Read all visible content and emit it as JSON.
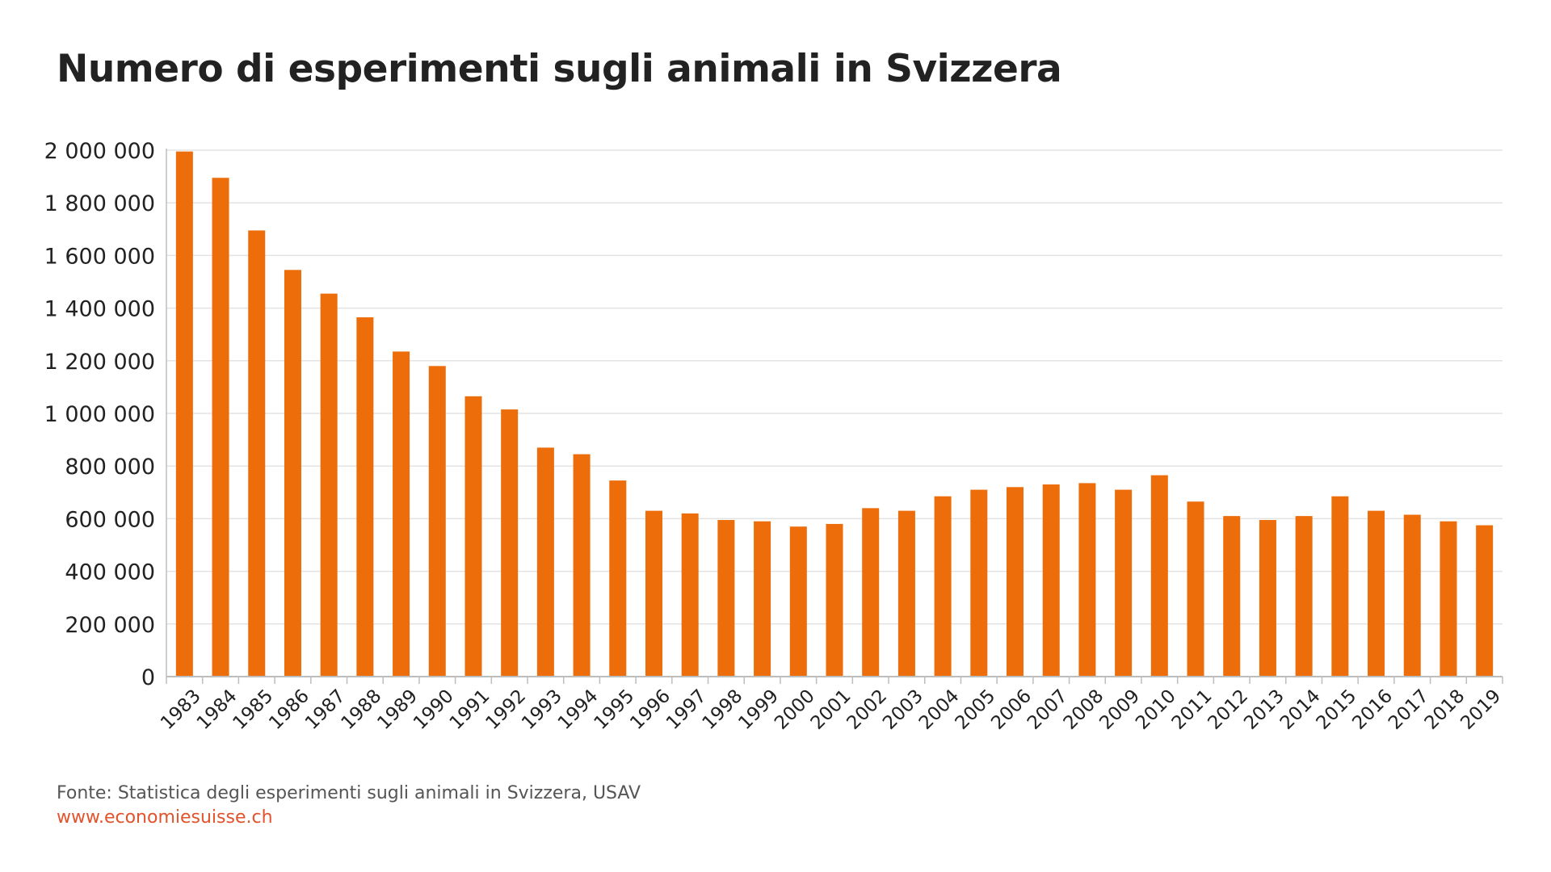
{
  "chart_data": {
    "type": "bar",
    "title": "Numero di esperimenti sugli animali in Svizzera",
    "categories": [
      "1983",
      "1984",
      "1985",
      "1986",
      "1987",
      "1988",
      "1989",
      "1990",
      "1991",
      "1992",
      "1993",
      "1994",
      "1995",
      "1996",
      "1997",
      "1998",
      "1999",
      "2000",
      "2001",
      "2002",
      "2003",
      "2004",
      "2005",
      "2006",
      "2007",
      "2008",
      "2009",
      "2010",
      "2011",
      "2012",
      "2013",
      "2014",
      "2015",
      "2016",
      "2017",
      "2018",
      "2019"
    ],
    "values": [
      1995000,
      1895000,
      1695000,
      1545000,
      1455000,
      1365000,
      1235000,
      1180000,
      1065000,
      1015000,
      870000,
      845000,
      745000,
      630000,
      620000,
      595000,
      590000,
      570000,
      580000,
      640000,
      630000,
      685000,
      710000,
      720000,
      730000,
      735000,
      710000,
      765000,
      665000,
      610000,
      595000,
      610000,
      685000,
      630000,
      615000,
      590000,
      575000
    ],
    "ylim": [
      0,
      2000000
    ],
    "y_ticks": [
      0,
      200000,
      400000,
      600000,
      800000,
      1000000,
      1200000,
      1400000,
      1600000,
      1800000,
      2000000
    ],
    "y_tick_labels": [
      "0",
      "200 000",
      "400 000",
      "600 000",
      "800 000",
      "1 000 000",
      "1 200 000",
      "1 400 000",
      "1 600 000",
      "1 800 000",
      "2 000 000"
    ],
    "xlabel": "",
    "ylabel": "",
    "grid": true,
    "legend": "none",
    "bar_color": "#ec6d0a",
    "grid_color": "#e3e3e3",
    "axis_color": "#bdbdbd"
  },
  "footer": {
    "source": "Fonte: Statistica degli esperimenti sugli animali in Svizzera, USAV",
    "link": "www.economiesuisse.ch",
    "link_color": "#e2532c"
  }
}
